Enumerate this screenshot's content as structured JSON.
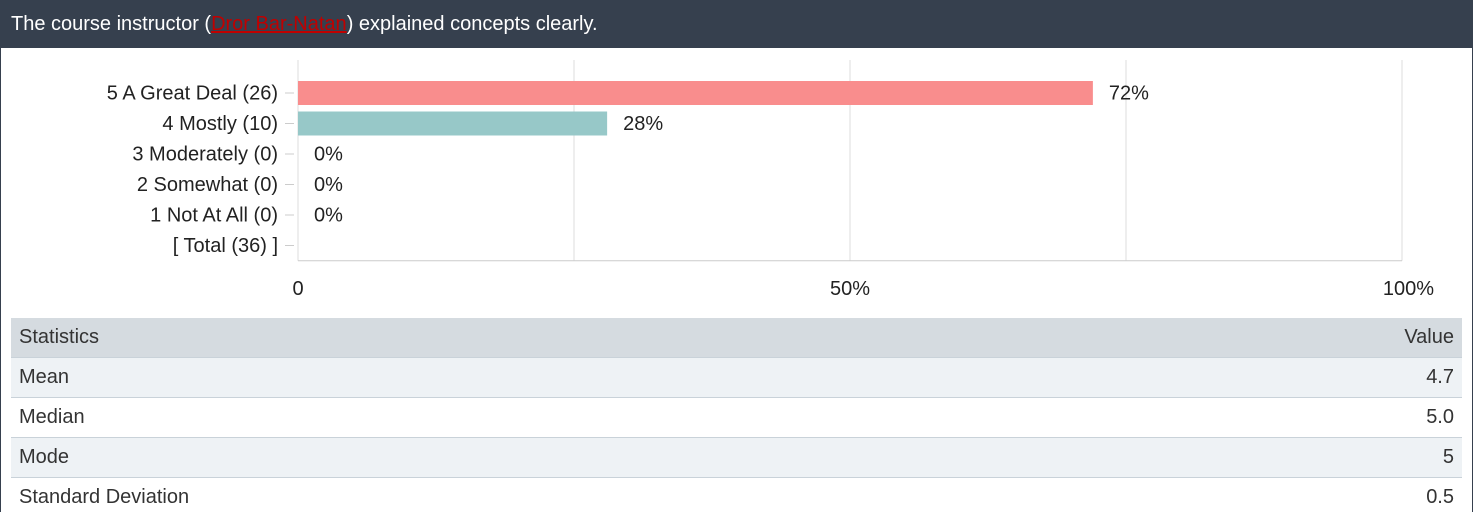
{
  "header": {
    "title_prefix": "The course instructor (",
    "link": "Dror Bar-Natan",
    "title_suffix": ") explained concepts clearly."
  },
  "chart_data": {
    "type": "bar",
    "orientation": "horizontal",
    "categories": [
      "5 A Great Deal (26)",
      "4 Mostly (10)",
      "3 Moderately (0)",
      "2 Somewhat (0)",
      "1 Not At All (0)",
      "[ Total (36) ]"
    ],
    "values": [
      72,
      28,
      0,
      0,
      0,
      null
    ],
    "value_labels": [
      "72%",
      "28%",
      "0%",
      "0%",
      "0%",
      null
    ],
    "colors": [
      "#f98d8d",
      "#97c8c8",
      "#97c8c8",
      "#97c8c8",
      "#97c8c8",
      "#97c8c8"
    ],
    "xlim": [
      0,
      100
    ],
    "xticks": [
      0,
      {
        "value": 50,
        "label": "50%"
      },
      {
        "value": 100,
        "label": "100%"
      }
    ],
    "xminorticks": [
      25,
      75
    ],
    "grid": true
  },
  "table": {
    "header": [
      "Statistics",
      "Value"
    ],
    "rows": [
      [
        "Mean",
        "4.7"
      ],
      [
        "Median",
        "5.0"
      ],
      [
        "Mode",
        "5"
      ],
      [
        "Standard Deviation",
        "0.5"
      ]
    ]
  }
}
